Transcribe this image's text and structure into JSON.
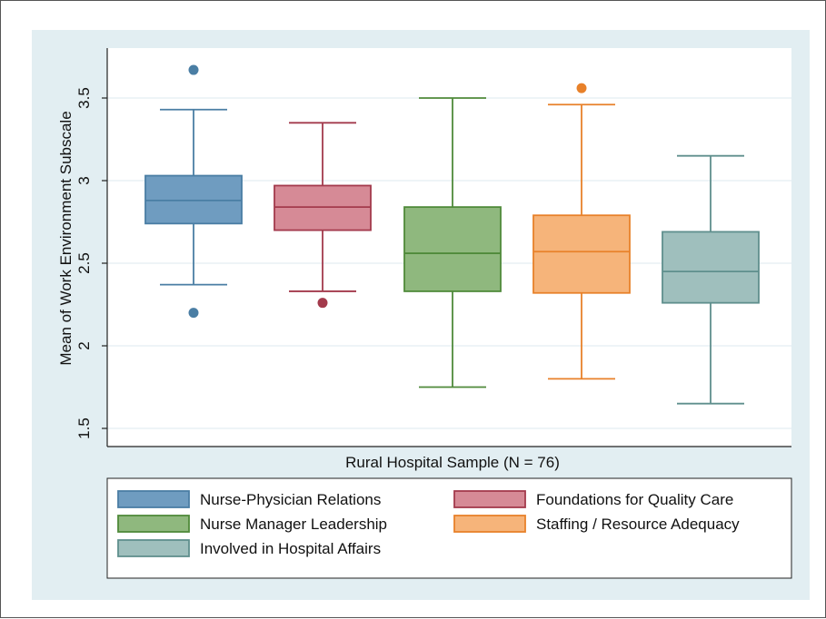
{
  "chart_data": {
    "type": "boxplot",
    "xlabel": "Rural Hospital Sample (N = 76)",
    "ylabel": "Mean of Work Environment Subscale",
    "ylim": [
      1.4,
      3.8
    ],
    "yticks": [
      "1.5",
      "2",
      "2.5",
      "3",
      "3.5"
    ],
    "grid": true,
    "legend_position": "bottom",
    "series": [
      {
        "name": "Nurse-Physician Relations",
        "color": "#4a7ea4",
        "fill": "#6f9cc0",
        "whisker_low": 2.37,
        "q1": 2.74,
        "median": 2.88,
        "q3": 3.03,
        "whisker_high": 3.43,
        "outliers": [
          3.67,
          2.2
        ]
      },
      {
        "name": "Foundations for Quality Care",
        "color": "#a33a4c",
        "fill": "#d68a96",
        "whisker_low": 2.33,
        "q1": 2.7,
        "median": 2.84,
        "q3": 2.97,
        "whisker_high": 3.35,
        "outliers": [
          2.26
        ]
      },
      {
        "name": "Nurse Manager Leadership",
        "color": "#4f8a3a",
        "fill": "#8fb87e",
        "whisker_low": 1.75,
        "q1": 2.33,
        "median": 2.56,
        "q3": 2.84,
        "whisker_high": 3.5,
        "outliers": []
      },
      {
        "name": "Staffing / Resource Adequacy",
        "color": "#e8812a",
        "fill": "#f6b47a",
        "whisker_low": 1.8,
        "q1": 2.32,
        "median": 2.57,
        "q3": 2.79,
        "whisker_high": 3.46,
        "outliers": [
          3.56
        ]
      },
      {
        "name": "Involved in Hospital Affairs",
        "color": "#5f8f8d",
        "fill": "#9fbfbd",
        "whisker_low": 1.65,
        "q1": 2.26,
        "median": 2.45,
        "q3": 2.69,
        "whisker_high": 3.15,
        "outliers": []
      }
    ]
  }
}
